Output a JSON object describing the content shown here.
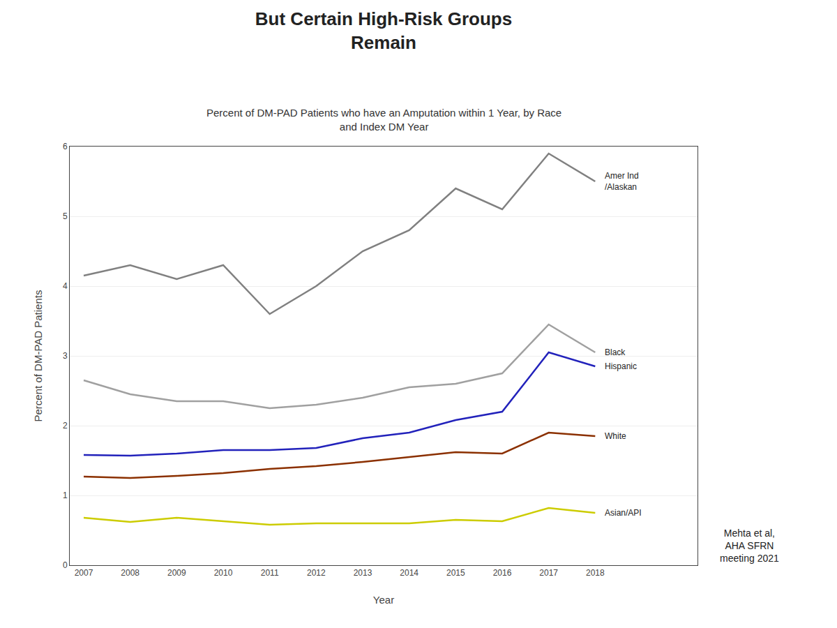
{
  "chart_data": {
    "type": "line",
    "title": "But Certain High-Risk Groups\nRemain",
    "subtitle": "Percent of DM-PAD Patients who have an Amputation within 1 Year, by Race\nand Index DM Year",
    "xlabel": "Year",
    "ylabel": "Percent of DM-PAD Patients",
    "citation": "Mehta et al,\nAHA SFRN\nmeeting 2021",
    "x": [
      2007,
      2008,
      2009,
      2010,
      2011,
      2012,
      2013,
      2014,
      2015,
      2016,
      2017,
      2018
    ],
    "series": [
      {
        "name": "Amer Ind\n/Alaskan",
        "color": "#808080",
        "values": [
          4.15,
          4.3,
          4.1,
          4.3,
          3.6,
          4.0,
          4.5,
          4.8,
          5.4,
          5.1,
          5.9,
          5.5
        ]
      },
      {
        "name": "Black",
        "color": "#a0a0a0",
        "values": [
          2.65,
          2.45,
          2.35,
          2.35,
          2.25,
          2.3,
          2.4,
          2.55,
          2.6,
          2.75,
          3.45,
          3.05
        ]
      },
      {
        "name": "Hispanic",
        "color": "#2222bb",
        "values": [
          1.58,
          1.57,
          1.6,
          1.65,
          1.65,
          1.68,
          1.82,
          1.9,
          2.08,
          2.2,
          3.05,
          2.85
        ]
      },
      {
        "name": "White",
        "color": "#8B3000",
        "values": [
          1.27,
          1.25,
          1.28,
          1.32,
          1.38,
          1.42,
          1.48,
          1.55,
          1.62,
          1.6,
          1.9,
          1.85
        ]
      },
      {
        "name": "Asian/API",
        "color": "#cccc00",
        "values": [
          0.68,
          0.62,
          0.68,
          0.63,
          0.58,
          0.6,
          0.6,
          0.6,
          0.65,
          0.63,
          0.82,
          0.75
        ]
      }
    ],
    "xlim": [
      2006.7,
      2020.2
    ],
    "xticks": [
      2007,
      2008,
      2009,
      2010,
      2011,
      2012,
      2013,
      2014,
      2015,
      2016,
      2017,
      2018
    ],
    "ylim": [
      0,
      6
    ],
    "yticks": [
      0,
      1,
      2,
      3,
      4,
      5,
      6
    ],
    "grid": "y",
    "legend": false
  }
}
